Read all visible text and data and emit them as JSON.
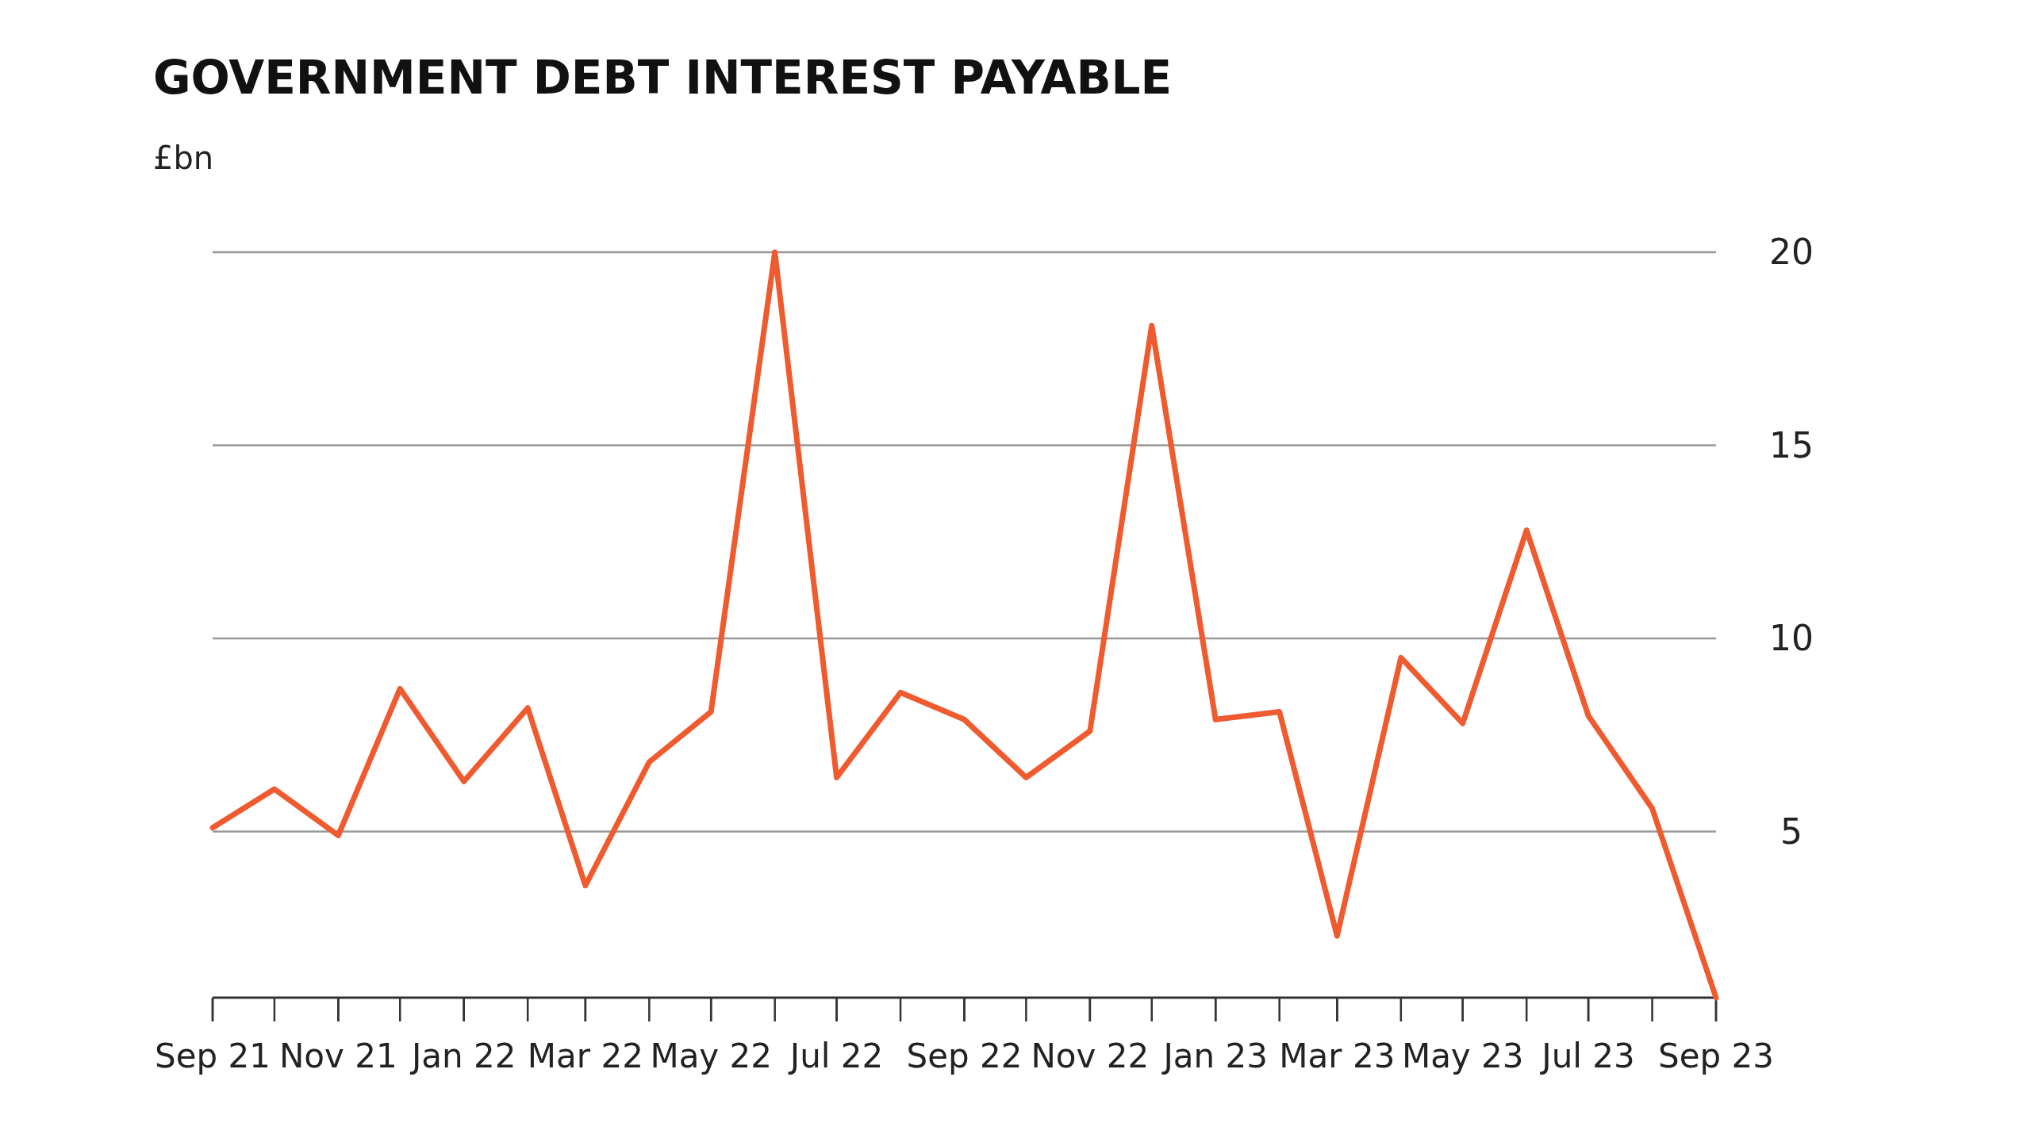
{
  "chart_data": {
    "type": "line",
    "title": "GOVERNMENT DEBT INTEREST PAYABLE",
    "ylabel": "£bn",
    "x": [
      "2021-09",
      "2021-10",
      "2021-11",
      "2021-12",
      "2022-01",
      "2022-02",
      "2022-03",
      "2022-04",
      "2022-05",
      "2022-06",
      "2022-07",
      "2022-08",
      "2022-09",
      "2022-10",
      "2022-11",
      "2022-12",
      "2023-01",
      "2023-02",
      "2023-03",
      "2023-04",
      "2023-05",
      "2023-06",
      "2023-07",
      "2023-08",
      "2023-09"
    ],
    "series": [
      {
        "color": "#ef5a2f",
        "values": [
          5.1,
          6.1,
          4.9,
          8.7,
          6.3,
          8.2,
          3.6,
          6.8,
          8.1,
          20,
          6.4,
          8.6,
          7.9,
          6.4,
          7.6,
          18.1,
          7.9,
          8.1,
          2.3,
          9.5,
          7.8,
          12.8,
          8.0,
          5.6,
          0.7
        ]
      }
    ],
    "xlim": [
      "2021-09",
      "2023-09"
    ],
    "xticks": [
      {
        "value": "2021-09",
        "label": "Sep 21"
      },
      {
        "value": "2021-11",
        "label": "Nov 21"
      },
      {
        "value": "2022-01",
        "label": "Jan 22"
      },
      {
        "value": "2022-03",
        "label": "Mar 22"
      },
      {
        "value": "2022-05",
        "label": "May 22"
      },
      {
        "value": "2022-07",
        "label": "Jul 22"
      },
      {
        "value": "2022-09",
        "label": "Sep 22"
      },
      {
        "value": "2022-11",
        "label": "Nov 22"
      },
      {
        "value": "2023-01",
        "label": "Jan 23"
      },
      {
        "value": "2023-03",
        "label": "Mar 23"
      },
      {
        "value": "2023-05",
        "label": "May 23"
      },
      {
        "value": "2023-07",
        "label": "Jul 23"
      },
      {
        "value": "2023-09",
        "label": "Sep 23"
      }
    ],
    "ylim": [
      0.7,
      20
    ],
    "yticks": [
      5,
      10,
      15,
      20
    ],
    "grid": "y",
    "line_style": "solid",
    "marker": "none"
  }
}
